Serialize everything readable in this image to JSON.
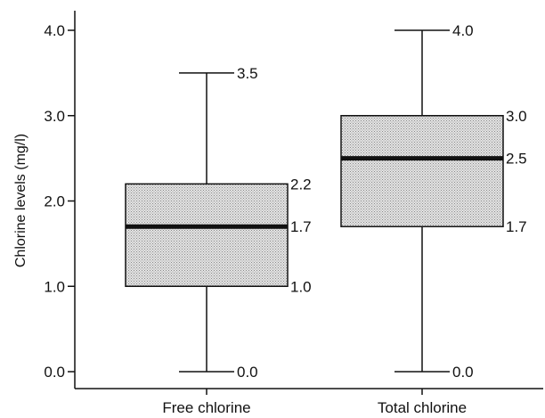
{
  "chart_data": {
    "type": "boxplot",
    "ylabel": "Chlorine levels (mg/l)",
    "ylim": [
      0,
      4
    ],
    "y_ticks": [
      {
        "value": 0,
        "label": "0.0"
      },
      {
        "value": 1,
        "label": "1.0"
      },
      {
        "value": 2,
        "label": "2.0"
      },
      {
        "value": 3,
        "label": "3.0"
      },
      {
        "value": 4,
        "label": "4.0"
      }
    ],
    "categories": [
      "Free chlorine",
      "Total chlorine"
    ],
    "boxes": [
      {
        "category": "Free chlorine",
        "min": 0.0,
        "q1": 1.0,
        "median": 1.7,
        "q3": 2.2,
        "max": 3.5,
        "labels": {
          "min": "0.0",
          "q1": "1.0",
          "median": "1.7",
          "q3": "2.2",
          "max": "3.5"
        }
      },
      {
        "category": "Total chlorine",
        "min": 0.0,
        "q1": 1.7,
        "median": 2.5,
        "q3": 3.0,
        "max": 4.0,
        "labels": {
          "min": "0.0",
          "q1": "1.7",
          "median": "2.5",
          "q3": "3.0",
          "max": "4.0"
        }
      }
    ],
    "grid": false,
    "box_fill": "#c8c8c8",
    "line_color": "#111111"
  }
}
